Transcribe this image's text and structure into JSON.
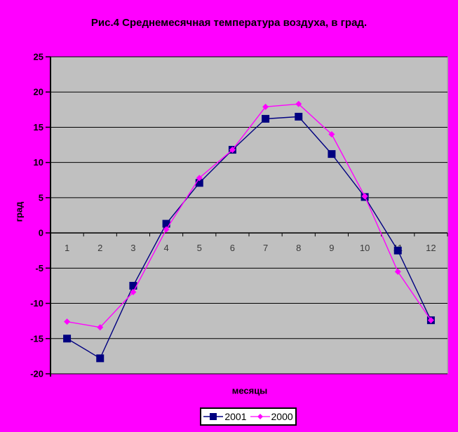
{
  "window": {
    "background_color": "#FF00FF",
    "plot_background_color": "#C0C0C0",
    "gridline_color": "#000000"
  },
  "chart_data": {
    "type": "line",
    "title": "Рис.4 Среднемесячная температура воздуха, в град.",
    "xlabel": "месяцы",
    "ylabel": "град",
    "categories": [
      "1",
      "2",
      "3",
      "4",
      "5",
      "6",
      "7",
      "8",
      "9",
      "10",
      "11",
      "12"
    ],
    "series": [
      {
        "name": "2001",
        "color": "#000080",
        "marker": "square",
        "values": [
          -15,
          -17.8,
          -7.5,
          1.3,
          7.1,
          11.8,
          16.2,
          16.5,
          11.2,
          5.1,
          -2.5,
          -12.4
        ]
      },
      {
        "name": "2000",
        "color": "#FF00FF",
        "marker": "diamond",
        "values": [
          -12.6,
          -13.4,
          -8.4,
          0.5,
          7.8,
          11.8,
          17.9,
          18.3,
          14.0,
          5.2,
          -5.5,
          -12.4
        ]
      }
    ],
    "ylim": [
      -20,
      25
    ],
    "ytick_step": 5,
    "grid": true,
    "legend_position": "bottom",
    "x_label_color": "#3a3a3a",
    "plot_right_border_color": "#a0b8a0"
  }
}
